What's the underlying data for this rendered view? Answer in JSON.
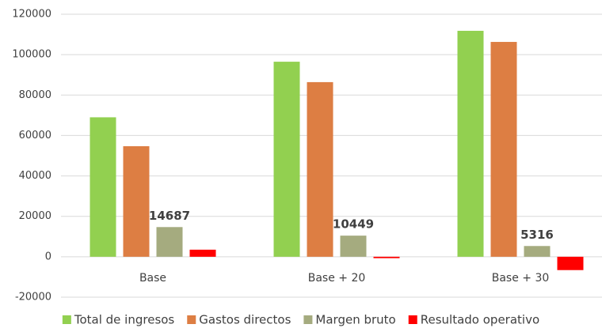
{
  "chart_data": {
    "type": "bar",
    "categories": [
      "Base",
      "Base + 20",
      "Base + 30"
    ],
    "series": [
      {
        "name": "Total de ingresos",
        "color": "#92d050",
        "values": [
          69000,
          96500,
          111800
        ]
      },
      {
        "name": "Gastos directos",
        "color": "#dd7e43",
        "values": [
          54700,
          86400,
          106300
        ]
      },
      {
        "name": "Margen bruto",
        "color": "#a5ab7f",
        "values": [
          14687,
          10449,
          5316
        ],
        "show_labels": true
      },
      {
        "name": "Resultado operativo",
        "color": "#ff0000",
        "values": [
          3500,
          -700,
          -6600
        ]
      }
    ],
    "ylim": [
      -20000,
      120000
    ],
    "yticks": [
      -20000,
      0,
      20000,
      40000,
      60000,
      80000,
      100000,
      120000
    ],
    "grid": true,
    "legend": "bottom"
  }
}
